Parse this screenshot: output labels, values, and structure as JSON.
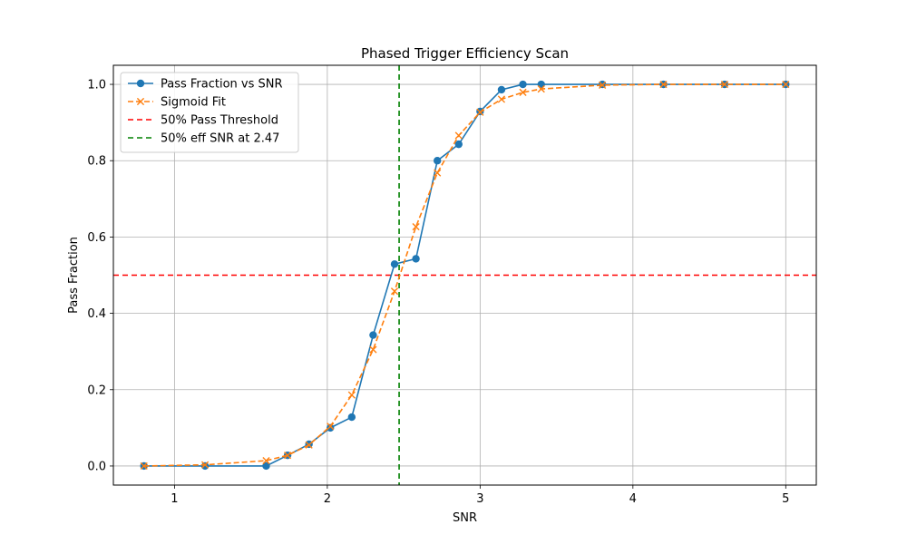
{
  "chart_data": {
    "type": "line",
    "title": "Phased Trigger Efficiency Scan",
    "xlabel": "SNR",
    "ylabel": "Pass Fraction",
    "xlim": [
      0.6,
      5.2
    ],
    "ylim": [
      -0.05,
      1.05
    ],
    "xticks": [
      1,
      2,
      3,
      4,
      5
    ],
    "yticks": [
      0.0,
      0.2,
      0.4,
      0.6,
      0.8,
      1.0
    ],
    "xtick_labels": [
      "1",
      "2",
      "3",
      "4",
      "5"
    ],
    "ytick_labels": [
      "0.0",
      "0.2",
      "0.4",
      "0.6",
      "0.8",
      "1.0"
    ],
    "grid": true,
    "legend_position": "upper-left",
    "series": [
      {
        "name": "Pass Fraction vs SNR",
        "style": "solid-circle",
        "color": "#1f77b4",
        "x": [
          0.8,
          1.2,
          1.6,
          1.74,
          1.88,
          2.02,
          2.16,
          2.3,
          2.44,
          2.58,
          2.72,
          2.86,
          3.0,
          3.14,
          3.28,
          3.4,
          3.8,
          4.2,
          4.6,
          5.0
        ],
        "y": [
          0.0,
          0.0,
          0.0,
          0.028,
          0.057,
          0.1,
          0.128,
          0.343,
          0.529,
          0.543,
          0.8,
          0.843,
          0.929,
          0.986,
          1.0,
          1.0,
          1.0,
          1.0,
          1.0,
          1.0
        ]
      },
      {
        "name": "Sigmoid Fit",
        "style": "dashed-x",
        "color": "#ff7f0e",
        "x": [
          0.8,
          1.2,
          1.6,
          1.74,
          1.88,
          2.02,
          2.16,
          2.3,
          2.44,
          2.58,
          2.72,
          2.86,
          3.0,
          3.14,
          3.28,
          3.4,
          3.8,
          4.2,
          4.6,
          5.0
        ],
        "y": [
          0.0,
          0.003,
          0.014,
          0.028,
          0.055,
          0.104,
          0.186,
          0.305,
          0.458,
          0.627,
          0.768,
          0.866,
          0.927,
          0.961,
          0.979,
          0.988,
          0.998,
          1.0,
          1.0,
          1.0
        ]
      }
    ],
    "reference_lines": [
      {
        "name": "50% Pass Threshold",
        "orientation": "horizontal",
        "value": 0.5,
        "color": "#ff0000"
      },
      {
        "name": "50% eff SNR at 2.47",
        "orientation": "vertical",
        "value": 2.47,
        "color": "#008000"
      }
    ]
  }
}
